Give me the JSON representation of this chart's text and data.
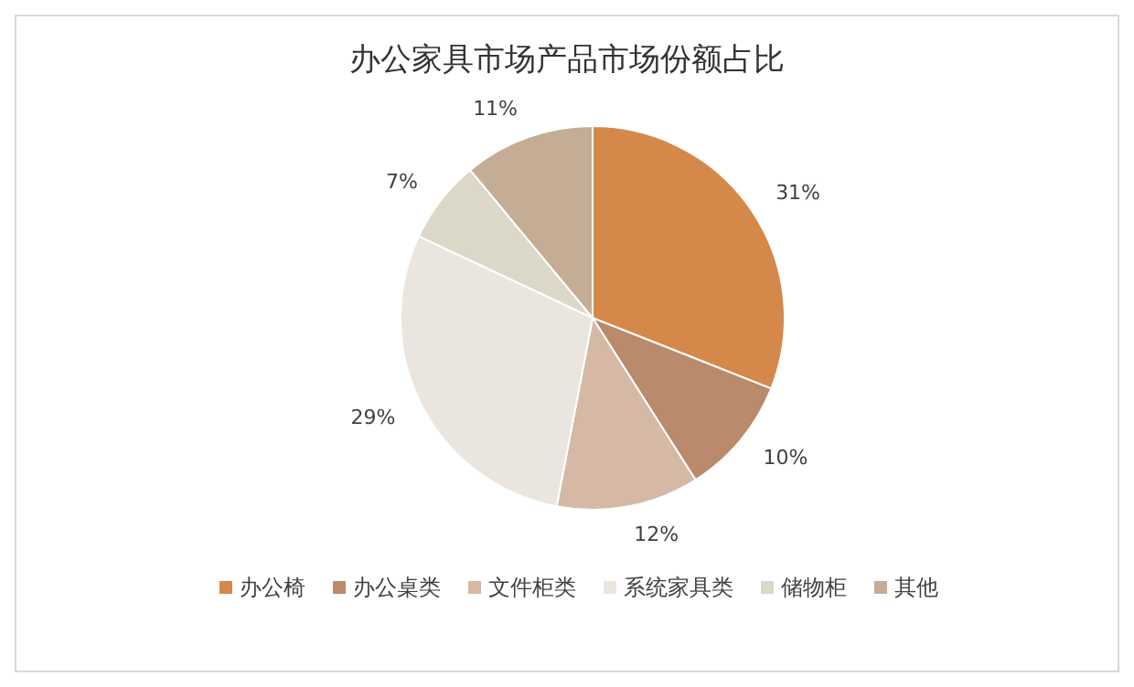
{
  "chart_data": {
    "type": "pie",
    "title": "办公家具市场产品市场份额占比",
    "categories": [
      "办公椅",
      "办公桌类",
      "文件柜类",
      "系统家具类",
      "储物柜",
      "其他"
    ],
    "values": [
      31,
      10,
      12,
      29,
      7,
      11
    ],
    "value_labels": [
      "31%",
      "10%",
      "12%",
      "29%",
      "7%",
      "11%"
    ],
    "colors": [
      "#d4894a",
      "#b98a6c",
      "#d5b9a5",
      "#ebe5e0",
      "#dcd8c8",
      "#c4ad94"
    ],
    "legend": "bottom"
  }
}
